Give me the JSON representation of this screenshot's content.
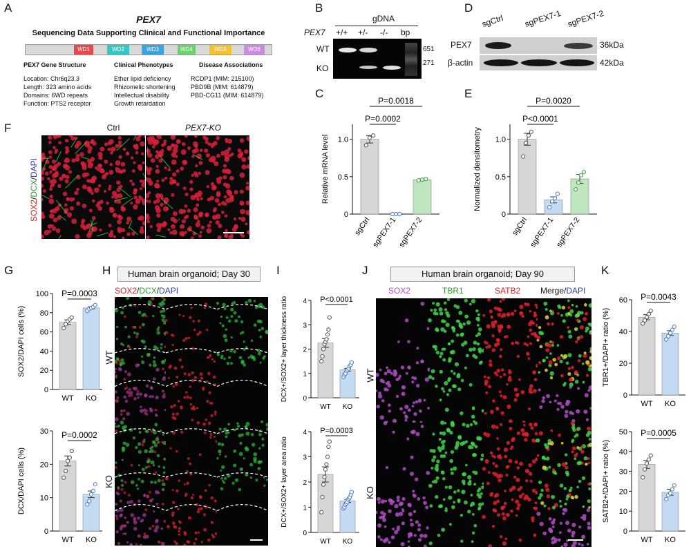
{
  "panels": {
    "A": "A",
    "B": "B",
    "C": "C",
    "D": "D",
    "E": "E",
    "F": "F",
    "G": "G",
    "H": "H",
    "I": "I",
    "J": "J",
    "K": "K"
  },
  "panelA": {
    "gene": "PEX7",
    "subtitle": "Sequencing Data Supporting Clinical and Functional Importance",
    "domains": [
      "WD1",
      "WD2",
      "WD3",
      "WD4",
      "WD5",
      "WD6"
    ],
    "domain_colors": [
      "#e8484c",
      "#35c7c7",
      "#3aa4e0",
      "#6dd16d",
      "#f2c12e",
      "#c98de0"
    ],
    "col1_title": "PEX7 Gene Structure",
    "col1": [
      "Location: Chr6q23.3",
      "Length: 323 amino acids",
      "Domains: 6WD repeats",
      "Function: PTS2 receptor"
    ],
    "col2_title": "Clinical Phenotypes",
    "col2": [
      "Ether lipid deficiency",
      "Rhizomelic shortening",
      "Intellectual disability",
      "Growth retardation"
    ],
    "col3_title": "Disease Associations",
    "col3": [
      "RCDP1 (MIM: 215100)",
      "PBD9B (MIM: 614879)",
      "PBD-CG11 (MIM: 614879)"
    ]
  },
  "panelB": {
    "header": "gDNA",
    "gene": "PEX7",
    "lanes": [
      "+/+",
      "+/-",
      "-/-",
      "bp"
    ],
    "rows": [
      "WT",
      "KO"
    ],
    "sizes": [
      "651",
      "271"
    ]
  },
  "panelD": {
    "lanes": [
      "sgCtrl",
      "sgPEX7-1",
      "sgPEX7-2"
    ],
    "rows": [
      "PEX7",
      "β-actin"
    ],
    "sizes": [
      "36kDa",
      "42kDa"
    ]
  },
  "panelF": {
    "cols": [
      "Ctrl",
      "PEX7-KO"
    ],
    "ylabel": "SOX2/DCX/DAPI",
    "ylabel_parts": [
      {
        "t": "SOX2",
        "c": "#d42020"
      },
      {
        "t": "/",
        "c": "#111"
      },
      {
        "t": "DCX",
        "c": "#2a9a2a"
      },
      {
        "t": "/",
        "c": "#111"
      },
      {
        "t": "DAPI",
        "c": "#2b3fb0"
      }
    ]
  },
  "panelH": {
    "header": "Human brain organoid; Day 30",
    "channels": [
      {
        "t": "SOX2",
        "c": "#d42020"
      },
      {
        "t": "/",
        "c": "#111"
      },
      {
        "t": "DCX",
        "c": "#2a9a2a"
      },
      {
        "t": "/",
        "c": "#111"
      },
      {
        "t": "DAPI",
        "c": "#2b3fb0"
      }
    ],
    "rows": [
      "WT",
      "KO"
    ]
  },
  "panelJ": {
    "header": "Human brain organoid; Day 90",
    "channels": [
      {
        "t": "SOX2",
        "c": "#b04cc4"
      },
      {
        "t": "TBR1",
        "c": "#2a9a2a"
      },
      {
        "t": "SATB2",
        "c": "#d42020"
      },
      {
        "t": "Merge/",
        "c": "#111",
        "t2": "DAPI",
        "c2": "#2b3fb0"
      }
    ],
    "rows": [
      "WT",
      "KO"
    ]
  },
  "chart_data": [
    {
      "id": "C",
      "type": "bar",
      "categories": [
        "sgCtrl",
        "sgPEX7-1",
        "sgPEX7-2"
      ],
      "values": [
        1.0,
        0.0,
        0.46
      ],
      "points": [
        [
          0.92,
          1.02,
          1.05
        ],
        [
          0.0,
          0.0,
          0.0
        ],
        [
          0.45,
          0.46,
          0.47
        ]
      ],
      "errors": [
        0.05,
        0.0,
        0.01
      ],
      "colors": [
        "#d6d6d6",
        "#c4d9f2",
        "#bfe6bf"
      ],
      "ylabel": "Relative mRNA level",
      "ylim": [
        0,
        1.2
      ],
      "yticks": [
        0,
        0.5,
        1.0
      ],
      "ytick_labels": [
        "0",
        "0.5",
        "1.0"
      ],
      "comparisons": [
        {
          "pair": [
            0,
            1
          ],
          "label": "P=0.0002"
        },
        {
          "pair": [
            0,
            2
          ],
          "label": "P=0.0018"
        }
      ]
    },
    {
      "id": "E",
      "type": "bar",
      "categories": [
        "sgCtrl",
        "sgPEX7-1",
        "sgPEX7-2"
      ],
      "values": [
        1.0,
        0.19,
        0.47
      ],
      "points": [
        [
          0.77,
          0.95,
          1.05,
          1.1
        ],
        [
          0.09,
          0.17,
          0.21,
          0.27
        ],
        [
          0.33,
          0.42,
          0.52,
          0.56
        ]
      ],
      "errors": [
        0.08,
        0.04,
        0.06
      ],
      "colors": [
        "#d6d6d6",
        "#c4d9f2",
        "#bfe6bf"
      ],
      "ylabel": "Normalized densitometry",
      "ylim": [
        0,
        1.2
      ],
      "yticks": [
        0,
        0.5,
        1.0
      ],
      "ytick_labels": [
        "0",
        "0.5",
        "1.0"
      ],
      "comparisons": [
        {
          "pair": [
            0,
            1
          ],
          "label": "P<0.0001"
        },
        {
          "pair": [
            0,
            2
          ],
          "label": "P=0.0020"
        }
      ]
    },
    {
      "id": "G1",
      "type": "bar",
      "categories": [
        "WT",
        "KO"
      ],
      "values": [
        70,
        85
      ],
      "points": [
        [
          64,
          68,
          71,
          73,
          75
        ],
        [
          82,
          84,
          85,
          86,
          88
        ]
      ],
      "errors": [
        2.5,
        1.2
      ],
      "colors": [
        "#d6d6d6",
        "#c4d9f2"
      ],
      "ylabel": "SOX2/DAPI cells (%)",
      "ylim": [
        0,
        100
      ],
      "yticks": [
        0,
        20,
        40,
        60,
        80,
        100
      ],
      "ytick_labels": [
        "0",
        "20",
        "40",
        "60",
        "80",
        "100"
      ],
      "comparisons": [
        {
          "pair": [
            0,
            1
          ],
          "label": "P=0.0003"
        }
      ]
    },
    {
      "id": "G2",
      "type": "bar",
      "categories": [
        "WT",
        "KO"
      ],
      "values": [
        21,
        11
      ],
      "points": [
        [
          16,
          18,
          21,
          22,
          24
        ],
        [
          8,
          9,
          11,
          12,
          14
        ]
      ],
      "errors": [
        1.5,
        1.0
      ],
      "colors": [
        "#d6d6d6",
        "#c4d9f2"
      ],
      "ylabel": "DCX/DAPI cells (%)",
      "ylim": [
        0,
        30
      ],
      "yticks": [
        0,
        10,
        20,
        30
      ],
      "ytick_labels": [
        "0",
        "10",
        "20",
        "30"
      ],
      "comparisons": [
        {
          "pair": [
            0,
            1
          ],
          "label": "P=0.0002"
        }
      ]
    },
    {
      "id": "I1",
      "type": "bar",
      "categories": [
        "WT",
        "KO"
      ],
      "values": [
        2.25,
        1.15
      ],
      "points": [
        [
          1.5,
          1.7,
          2.0,
          2.2,
          2.3,
          2.4,
          2.6,
          2.8,
          3.3
        ],
        [
          0.85,
          0.95,
          1.0,
          1.1,
          1.15,
          1.2,
          1.3,
          1.35,
          1.45
        ]
      ],
      "errors": [
        0.18,
        0.06
      ],
      "colors": [
        "#d6d6d6",
        "#c4d9f2"
      ],
      "ylabel": "DCX+/SOX2+ layer thickness ratio",
      "ylim": [
        0,
        4
      ],
      "yticks": [
        0,
        1,
        2,
        3,
        4
      ],
      "ytick_labels": [
        "0",
        "1",
        "2",
        "3",
        "4"
      ],
      "comparisons": [
        {
          "pair": [
            0,
            1
          ],
          "label": "P<0.0001"
        }
      ]
    },
    {
      "id": "I2",
      "type": "bar",
      "categories": [
        "WT",
        "KO"
      ],
      "values": [
        2.3,
        1.25
      ],
      "points": [
        [
          0.8,
          1.4,
          1.9,
          2.2,
          2.5,
          2.7,
          3.0,
          3.4,
          3.6
        ],
        [
          0.95,
          1.0,
          1.1,
          1.15,
          1.2,
          1.3,
          1.35,
          1.4,
          1.5,
          1.6
        ]
      ],
      "errors": [
        0.3,
        0.06
      ],
      "colors": [
        "#d6d6d6",
        "#c4d9f2"
      ],
      "ylabel": "DCX+/SOX2+ layer area ratio",
      "ylim": [
        0,
        4
      ],
      "yticks": [
        0,
        1,
        2,
        3,
        4
      ],
      "ytick_labels": [
        "0",
        "1",
        "2",
        "3",
        "4"
      ],
      "comparisons": [
        {
          "pair": [
            0,
            1
          ],
          "label": "P=0.0003"
        }
      ]
    },
    {
      "id": "K1",
      "type": "bar",
      "categories": [
        "WT",
        "KO"
      ],
      "values": [
        49,
        39
      ],
      "points": [
        [
          45,
          47,
          49,
          51,
          53
        ],
        [
          35,
          37,
          39,
          41,
          43
        ]
      ],
      "errors": [
        1.6,
        1.5
      ],
      "colors": [
        "#d6d6d6",
        "#c4d9f2"
      ],
      "ylabel": "TBR1+/DAPI+ ratio (%)",
      "ylim": [
        0,
        60
      ],
      "yticks": [
        0,
        20,
        40,
        60
      ],
      "ytick_labels": [
        "0",
        "20",
        "40",
        "60"
      ],
      "comparisons": [
        {
          "pair": [
            0,
            1
          ],
          "label": "P=0.0043"
        }
      ]
    },
    {
      "id": "K2",
      "type": "bar",
      "categories": [
        "WT",
        "KO"
      ],
      "values": [
        33.5,
        19.5
      ],
      "points": [
        [
          27,
          31,
          34,
          36,
          38
        ],
        [
          16,
          18,
          19,
          21,
          23
        ]
      ],
      "errors": [
        2.0,
        1.5
      ],
      "colors": [
        "#d6d6d6",
        "#c4d9f2"
      ],
      "ylabel": "SATB2+/DAPI+ ratio (%)",
      "ylim": [
        0,
        50
      ],
      "yticks": [
        0,
        10,
        20,
        30,
        40,
        50
      ],
      "ytick_labels": [
        "0",
        "10",
        "20",
        "30",
        "40",
        "50"
      ],
      "comparisons": [
        {
          "pair": [
            0,
            1
          ],
          "label": "P=0.0005"
        }
      ]
    }
  ]
}
